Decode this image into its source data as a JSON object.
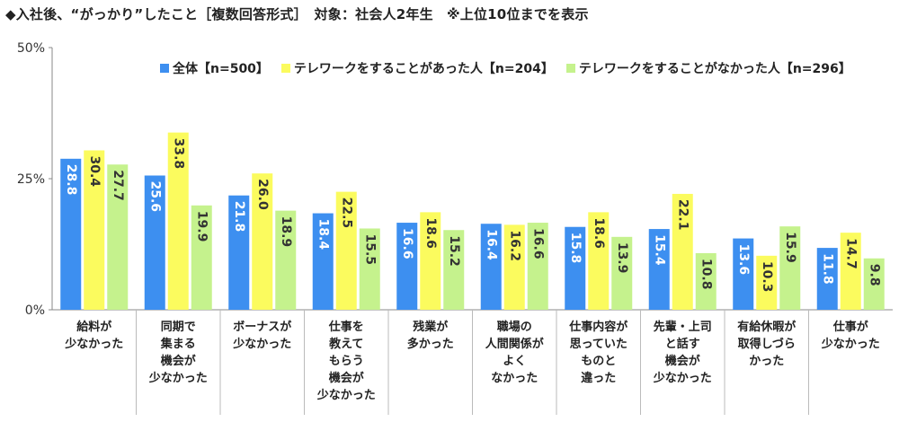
{
  "title": "◆入社後、“がっかり”したこと［複数回答形式］　対象：社会人2年生　※上位10位までを表示",
  "chart_data": {
    "type": "bar",
    "ylim": [
      0,
      50
    ],
    "yticks": [
      "0%",
      "25%",
      "50%"
    ],
    "categories": [
      "給料が\n少なかった",
      "同期で\n集まる\n機会が\n少なかった",
      "ボーナスが\n少なかった",
      "仕事を\n教えて\nもらう\n機会が\n少なかった",
      "残業が\n多かった",
      "職場の\n人間関係が\nよく\nなかった",
      "仕事内容が\n思っていた\nものと\n違った",
      "先輩・上司\nと話す\n機会が\n少なかった",
      "有給休暇が\n取得しづら\nかった",
      "仕事が\n少なかった"
    ],
    "series": [
      {
        "name": "全体【n=500】",
        "color": "#3d8ff0",
        "values": [
          28.8,
          25.6,
          21.8,
          18.4,
          16.6,
          16.4,
          15.8,
          15.4,
          13.6,
          11.8
        ]
      },
      {
        "name": "テレワークをすることがあった人【n=204】",
        "color": "#fbfb5e",
        "values": [
          30.4,
          33.8,
          26.0,
          22.5,
          18.6,
          16.2,
          18.6,
          22.1,
          10.3,
          14.7
        ]
      },
      {
        "name": "テレワークをすることがなかった人【n=296】",
        "color": "#c5f28d",
        "values": [
          27.7,
          19.9,
          18.9,
          15.5,
          15.2,
          16.6,
          13.9,
          10.8,
          15.9,
          9.8
        ]
      }
    ],
    "legend_position": "top",
    "grid": false
  }
}
